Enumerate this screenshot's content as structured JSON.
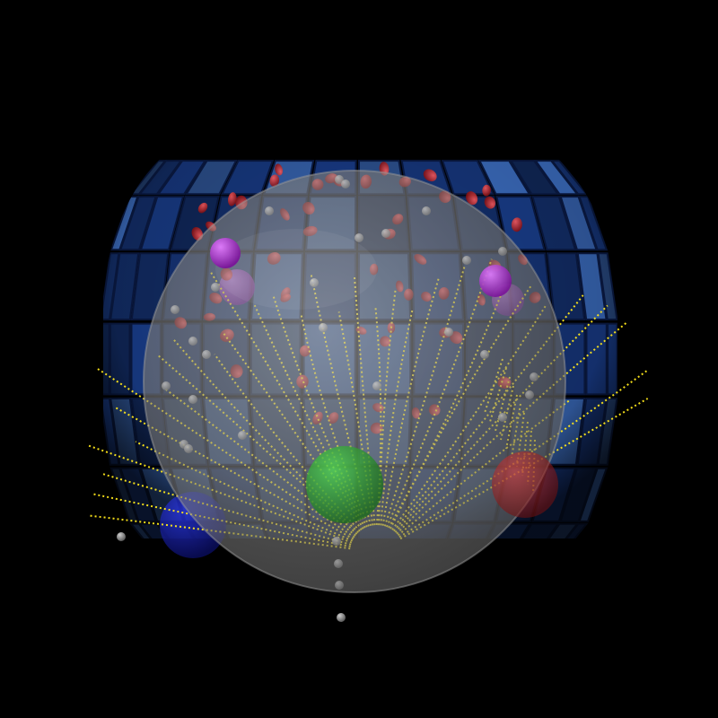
{
  "scene": {
    "background_color": "#000000",
    "outer_shell": {
      "shape": "hemispherical dome of square tiles",
      "tile_color": "#1a3f8f",
      "tile_highlight": "#3d6fc4",
      "rows": 7,
      "columns": 14
    },
    "inner_sphere": {
      "color": "#8a8a8a",
      "opacity": 0.55
    },
    "field_lines": {
      "color": "#ffe81a",
      "style": "dotted streamlines",
      "count": 34
    },
    "electrodes": {
      "color": "#c81e1e",
      "count": 58,
      "shape": "small ellipsoids"
    },
    "probe_points": {
      "color": "#c8c8c8",
      "count": 30,
      "shape": "small spheres"
    },
    "markers": [
      {
        "color": "#b22bd8",
        "label": ""
      },
      {
        "color": "#b22bd8",
        "label": ""
      },
      {
        "color": "#b22bd8",
        "label": ""
      },
      {
        "color": "#2ebd2e",
        "label": ""
      },
      {
        "color": "#1c28c8",
        "label": ""
      },
      {
        "color": "#c81e1e",
        "label": ""
      }
    ]
  }
}
